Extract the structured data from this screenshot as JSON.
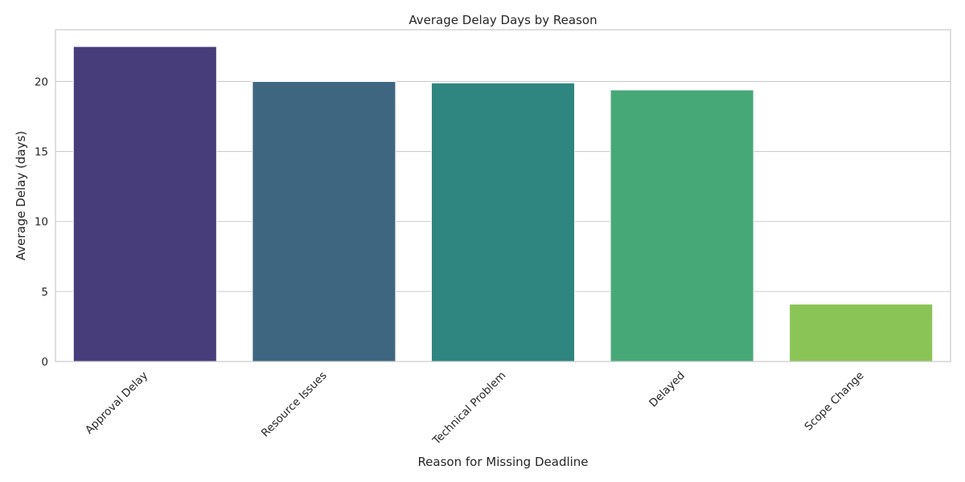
{
  "chart_data": {
    "type": "bar",
    "title": "Average Delay Days by Reason",
    "xlabel": "Reason for Missing Deadline",
    "ylabel": "Average Delay (days)",
    "categories": [
      "Approval Delay",
      "Resource Issues",
      "Technical Problem",
      "Delayed",
      "Scope Change"
    ],
    "values": [
      22.5,
      20.0,
      19.9,
      19.4,
      4.1
    ],
    "colors": [
      "#483d7b",
      "#3e6680",
      "#2f8580",
      "#47a877",
      "#8bc456"
    ],
    "ylim": [
      0,
      23.7
    ],
    "yticks": [
      0,
      5,
      10,
      15,
      20
    ],
    "grid": "y",
    "legend": "none"
  }
}
